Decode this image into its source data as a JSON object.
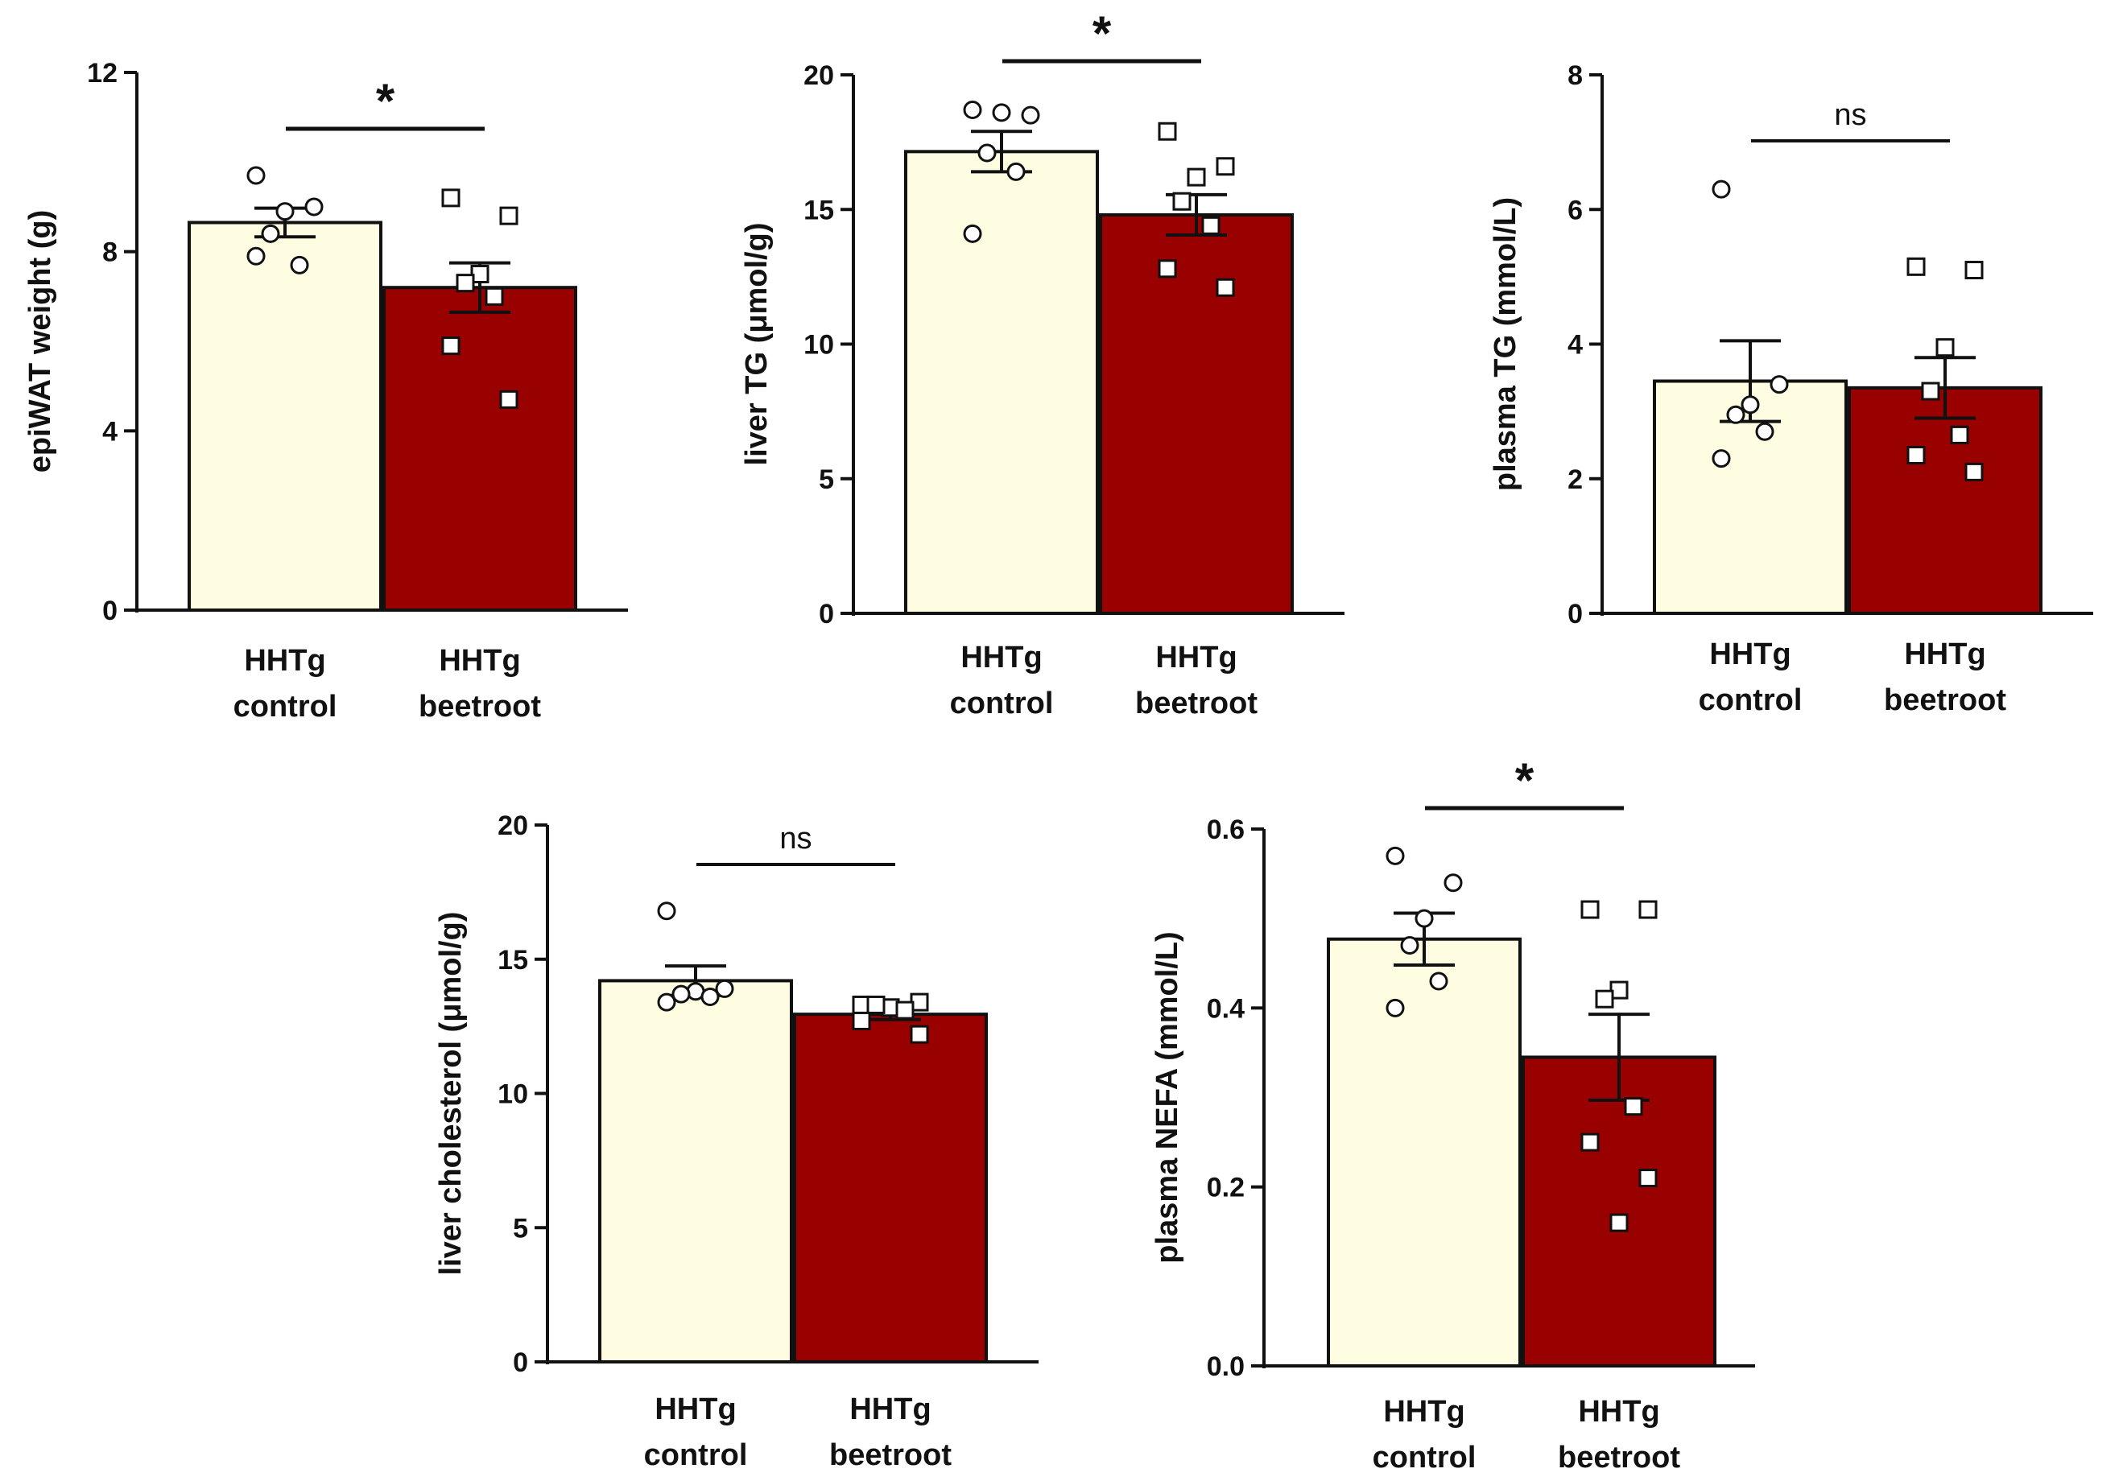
{
  "figure": {
    "colors": {
      "control": "#fefde2",
      "beetroot": "#990000",
      "axis": "#111111",
      "marker_fill": "#ffffff"
    },
    "marker_shapes": {
      "control": "circle",
      "beetroot": "square"
    }
  },
  "chart_data": [
    {
      "type": "bar",
      "ylabel": "epiWAT weight (g)",
      "yticks": [
        "0",
        "4",
        "8",
        "12"
      ],
      "ylim": [
        0,
        12
      ],
      "categories": [
        [
          "HHTg",
          "control"
        ],
        [
          "HHTg",
          "beetroot"
        ]
      ],
      "values": [
        8.65,
        7.2
      ],
      "sem": [
        0.32,
        0.55
      ],
      "points": [
        [
          9.7,
          9.0,
          8.9,
          8.4,
          7.7,
          7.9
        ],
        [
          9.2,
          8.8,
          7.5,
          7.3,
          7.0,
          5.9,
          4.7
        ]
      ],
      "significance": "*"
    },
    {
      "type": "bar",
      "ylabel": "liver TG (μmol/g)",
      "yticks": [
        "0",
        "5",
        "10",
        "15",
        "20"
      ],
      "ylim": [
        0,
        20
      ],
      "categories": [
        [
          "HHTg",
          "control"
        ],
        [
          "HHTg",
          "beetroot"
        ]
      ],
      "values": [
        17.15,
        14.8
      ],
      "sem": [
        0.75,
        0.75
      ],
      "points": [
        [
          18.7,
          18.5,
          18.6,
          17.1,
          16.4,
          14.1
        ],
        [
          17.9,
          16.6,
          16.2,
          15.3,
          14.4,
          12.8,
          12.1
        ]
      ],
      "significance": "*"
    },
    {
      "type": "bar",
      "ylabel": "plasma TG (mmol/L)",
      "yticks": [
        "0",
        "2",
        "4",
        "6",
        "8"
      ],
      "ylim": [
        0,
        8
      ],
      "categories": [
        [
          "HHTg",
          "control"
        ],
        [
          "HHTg",
          "beetroot"
        ]
      ],
      "values": [
        3.45,
        3.35
      ],
      "sem": [
        0.6,
        0.45
      ],
      "points": [
        [
          6.3,
          3.4,
          3.1,
          2.95,
          2.7,
          2.3
        ],
        [
          5.15,
          5.1,
          3.95,
          3.3,
          2.65,
          2.35,
          2.1
        ]
      ],
      "significance": "ns"
    },
    {
      "type": "bar",
      "ylabel": "liver cholesterol (μmol/g)",
      "yticks": [
        "0",
        "5",
        "10",
        "15",
        "20"
      ],
      "ylim": [
        0,
        20
      ],
      "categories": [
        [
          "HHTg",
          "control"
        ],
        [
          "HHTg",
          "beetroot"
        ]
      ],
      "values": [
        14.2,
        12.95
      ],
      "sem": [
        0.55,
        0.2
      ],
      "points": [
        [
          16.8,
          13.9,
          13.8,
          13.7,
          13.6,
          13.4
        ],
        [
          13.3,
          13.4,
          13.2,
          13.3,
          13.1,
          12.7,
          12.2
        ]
      ],
      "significance": "ns"
    },
    {
      "type": "bar",
      "ylabel": "plasma NEFA (mmol/L)",
      "yticks": [
        "0.0",
        "0.2",
        "0.4",
        "0.6"
      ],
      "ylim": [
        0,
        0.6
      ],
      "categories": [
        [
          "HHTg",
          "control"
        ],
        [
          "HHTg",
          "beetroot"
        ]
      ],
      "values": [
        0.477,
        0.345
      ],
      "sem": [
        0.029,
        0.048
      ],
      "points": [
        [
          0.57,
          0.54,
          0.5,
          0.47,
          0.43,
          0.4
        ],
        [
          0.51,
          0.51,
          0.42,
          0.41,
          0.29,
          0.25,
          0.21,
          0.16
        ]
      ],
      "significance": "*"
    }
  ]
}
